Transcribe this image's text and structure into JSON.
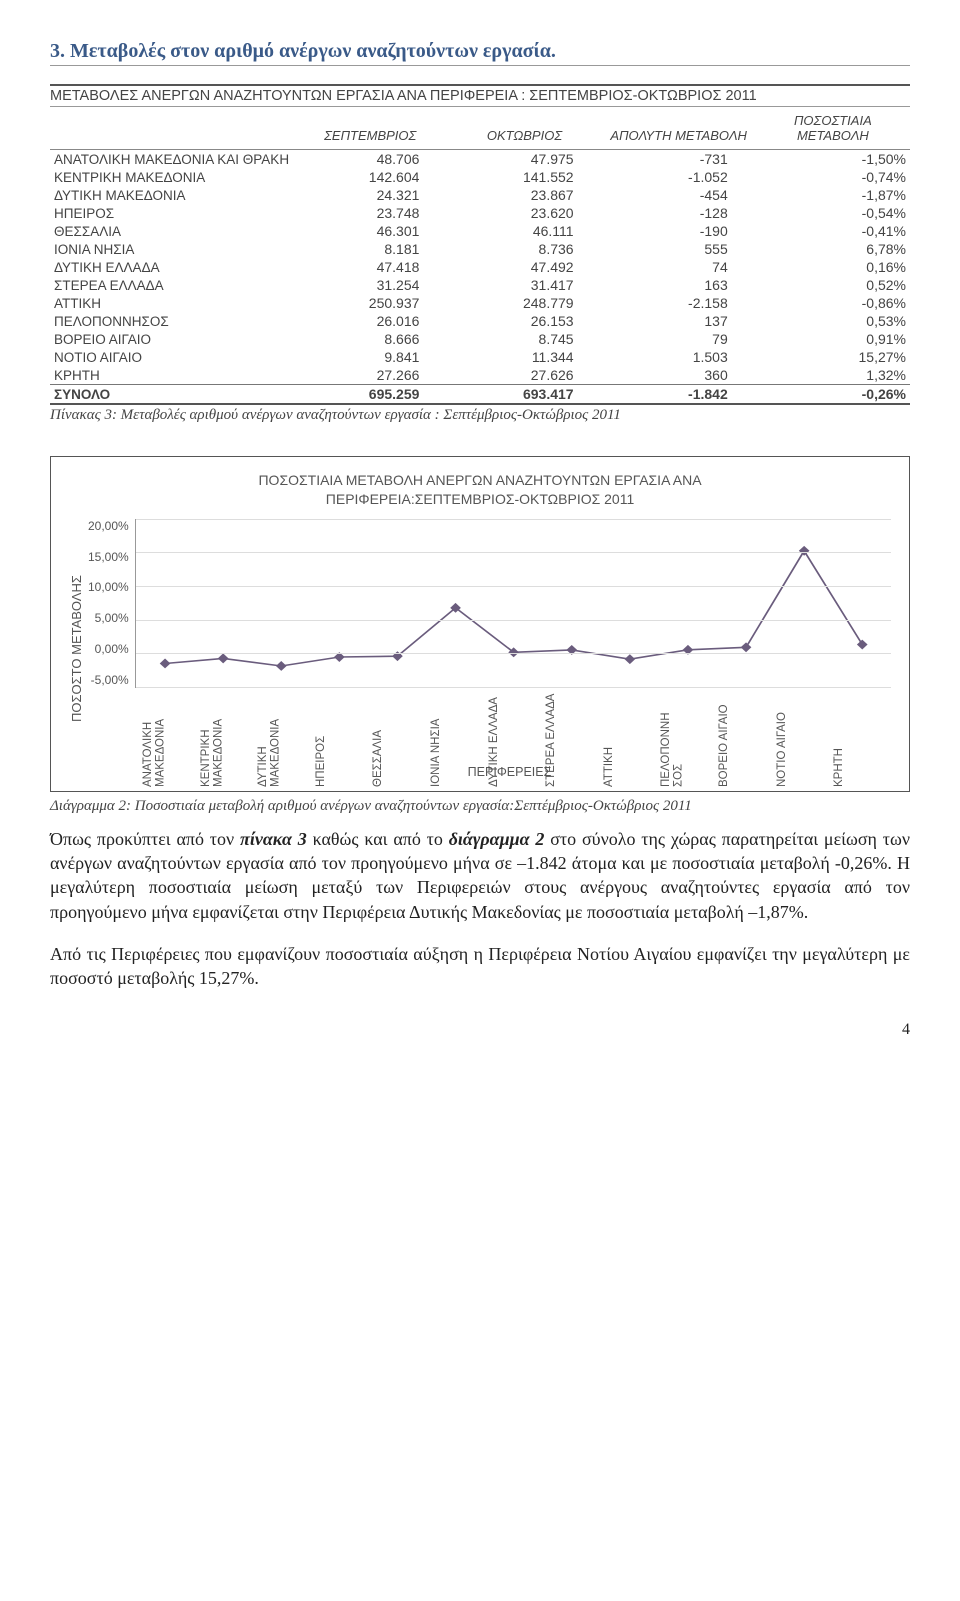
{
  "section_title": "3. Μεταβολές στον αριθμό ανέργων αναζητούντων εργασία.",
  "table": {
    "heading": "ΜΕΤΑΒΟΛΕΣ ΑΝΕΡΓΩΝ ΑΝΑΖΗΤΟΥΝΤΩΝ ΕΡΓΑΣΙΑ ΑΝΑ ΠΕΡΙΦΕΡΕΙΑ : ΣΕΠΤΕΜΒΡΙΟΣ-ΟΚΤΩΒΡΙΟΣ 2011",
    "columns": [
      "",
      "ΣΕΠΤΕΜΒΡΙΟΣ",
      "ΟΚΤΩΒΡΙΟΣ",
      "ΑΠΟΛΥΤΗ ΜΕΤΑΒΟΛΗ",
      "ΠΟΣΟΣΤΙΑΙΑ ΜΕΤΑΒΟΛΗ"
    ],
    "rows": [
      {
        "region": "ΑΝΑΤΟΛΙΚΗ ΜΑΚΕΔΟΝΙΑ ΚΑΙ ΘΡΑΚΗ",
        "sep": "48.706",
        "oct": "47.975",
        "abs": "-731",
        "pct": "-1,50%"
      },
      {
        "region": "ΚΕΝΤΡΙΚΗ ΜΑΚΕΔΟΝΙΑ",
        "sep": "142.604",
        "oct": "141.552",
        "abs": "-1.052",
        "pct": "-0,74%"
      },
      {
        "region": "ΔΥΤΙΚΗ ΜΑΚΕΔΟΝΙΑ",
        "sep": "24.321",
        "oct": "23.867",
        "abs": "-454",
        "pct": "-1,87%"
      },
      {
        "region": "ΗΠΕΙΡΟΣ",
        "sep": "23.748",
        "oct": "23.620",
        "abs": "-128",
        "pct": "-0,54%"
      },
      {
        "region": "ΘΕΣΣΑΛΙΑ",
        "sep": "46.301",
        "oct": "46.111",
        "abs": "-190",
        "pct": "-0,41%"
      },
      {
        "region": "ΙΟΝΙΑ ΝΗΣΙΑ",
        "sep": "8.181",
        "oct": "8.736",
        "abs": "555",
        "pct": "6,78%"
      },
      {
        "region": "ΔΥΤΙΚΗ ΕΛΛΑΔΑ",
        "sep": "47.418",
        "oct": "47.492",
        "abs": "74",
        "pct": "0,16%"
      },
      {
        "region": "ΣΤΕΡΕΑ ΕΛΛΑΔΑ",
        "sep": "31.254",
        "oct": "31.417",
        "abs": "163",
        "pct": "0,52%"
      },
      {
        "region": "ΑΤΤΙΚΗ",
        "sep": "250.937",
        "oct": "248.779",
        "abs": "-2.158",
        "pct": "-0,86%"
      },
      {
        "region": "ΠΕΛΟΠΟΝΝΗΣΟΣ",
        "sep": "26.016",
        "oct": "26.153",
        "abs": "137",
        "pct": "0,53%"
      },
      {
        "region": "ΒΟΡΕΙΟ ΑΙΓΑΙΟ",
        "sep": "8.666",
        "oct": "8.745",
        "abs": "79",
        "pct": "0,91%"
      },
      {
        "region": "ΝΟΤΙΟ ΑΙΓΑΙΟ",
        "sep": "9.841",
        "oct": "11.344",
        "abs": "1.503",
        "pct": "15,27%"
      },
      {
        "region": "ΚΡΗΤΗ",
        "sep": "27.266",
        "oct": "27.626",
        "abs": "360",
        "pct": "1,32%"
      }
    ],
    "total": {
      "region": "ΣΥΝΟΛΟ",
      "sep": "695.259",
      "oct": "693.417",
      "abs": "-1.842",
      "pct": "-0,26%"
    },
    "caption": "Πίνακας 3: Μεταβολές αριθμού ανέργων αναζητούντων εργασία : Σεπτέμβριος-Οκτώβριος  2011"
  },
  "chart": {
    "type": "line",
    "title_line1": "ΠΟΣΟΣΤΙΑΙΑ ΜΕΤΑΒΟΛΗ ΑΝΕΡΓΩΝ ΑΝΑΖΗΤΟΥΝΤΩΝ ΕΡΓΑΣΙΑ ΑΝΑ",
    "title_line2": "ΠΕΡΙΦΕΡΕΙΑ:ΣΕΠΤΕΜΒΡΙΟΣ-ΟΚΤΩΒΡΙΟΣ 2011",
    "y_label": "ΠΟΣΟΣΤΟ ΜΕΤΑΒΟΛΗΣ",
    "x_label": "ΠΕΡΙΦΕΡΕΙΕΣ",
    "y_ticks": [
      "20,00%",
      "15,00%",
      "10,00%",
      "5,00%",
      "0,00%",
      "-5,00%"
    ],
    "ylim": [
      -5,
      20
    ],
    "categories": [
      "ΑΝΑΤΟΛΙΚΗ ΜΑΚΕΔΟΝΙΑ",
      "ΚΕΝΤΡΙΚΗ ΜΑΚΕΔΟΝΙΑ",
      "ΔΥΤΙΚΗ ΜΑΚΕΔΟΝΙΑ",
      "ΗΠΕΙΡΟΣ",
      "ΘΕΣΣΑΛΙΑ",
      "ΙΟΝΙΑ ΝΗΣΙΑ",
      "ΔΥΤΙΚΗ ΕΛΛΑΔΑ",
      "ΣΤΕΡΕΑ ΕΛΛΑΔΑ",
      "ΑΤΤΙΚΗ",
      "ΠΕΛΟΠΟΝΝΗ ΣΟΣ",
      "ΒΟΡΕΙΟ ΑΙΓΑΙΟ",
      "ΝΟΤΙΟ ΑΙΓΑΙΟ",
      "ΚΡΗΤΗ"
    ],
    "values": [
      -1.5,
      -0.74,
      -1.87,
      -0.54,
      -0.41,
      6.78,
      0.16,
      0.52,
      -0.86,
      0.53,
      0.91,
      15.27,
      1.32
    ],
    "line_color": "#6a5c7d",
    "marker_color": "#6a5c7d",
    "grid_color": "#dddddd",
    "background_color": "#ffffff",
    "caption": "Διάγραμμα 2: Ποσοστιαία μεταβολή αριθμού ανέργων αναζητούντων εργασία:Σεπτέμβριος-Οκτώβριος 2011"
  },
  "body": {
    "p1": "Όπως προκύπτει από τον πίνακα 3 καθώς και από το διάγραμμα 2 στο σύνολο της χώρας παρατηρείται μείωση των ανέργων αναζητούντων εργασία από τον προηγούμενο μήνα σε –1.842 άτομα και με ποσοστιαία μεταβολή -0,26%. Η μεγαλύτερη ποσοστιαία μείωση μεταξύ των Περιφερειών στους ανέργους αναζητούντες εργασία από τον προηγούμενο μήνα εμφανίζεται στην Περιφέρεια Δυτικής Μακεδονίας με ποσοστιαία μεταβολή –1,87%.",
    "p2": "Από τις Περιφέρειες που εμφανίζουν  ποσοστιαία αύξηση η Περιφέρεια  Νοτίου Αιγαίου εμφανίζει την μεγαλύτερη  με ποσοστό μεταβολής 15,27%."
  },
  "page_number": "4"
}
